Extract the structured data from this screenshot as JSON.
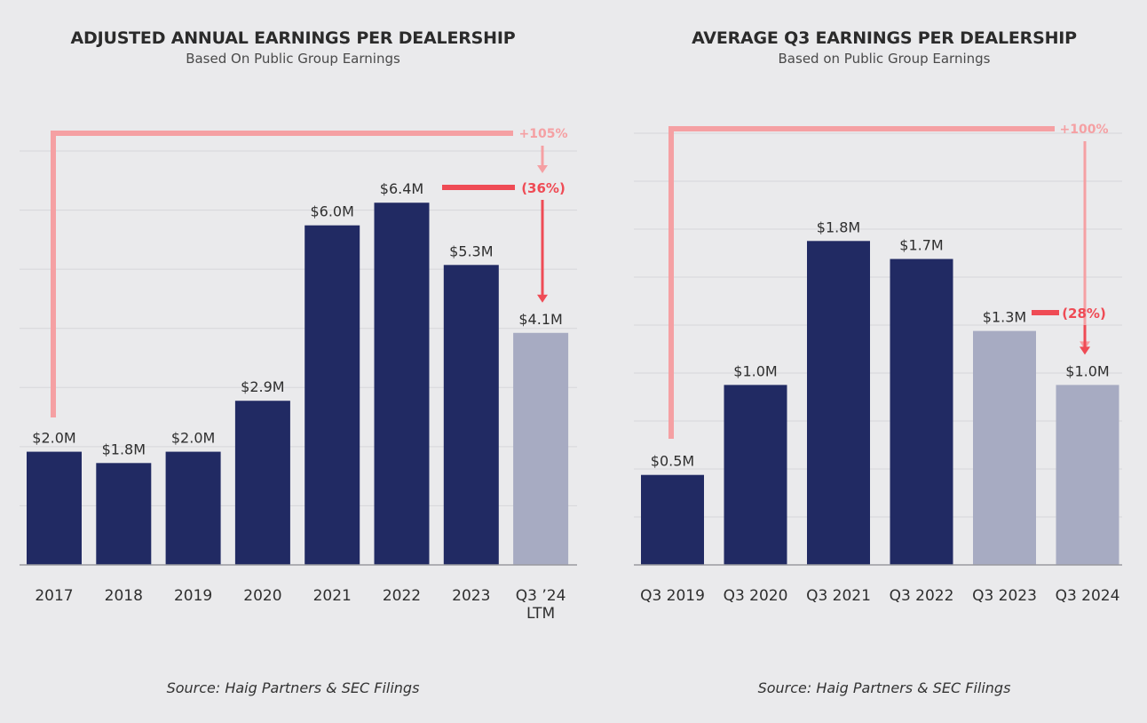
{
  "colors": {
    "background": "#eaeaec",
    "bar_dark": "#212a63",
    "bar_light": "#a7abc2",
    "bracket": "#f5a0a3",
    "decline": "#ef4b55",
    "gridline": "#d6d6da",
    "axis": "#9a9aa0",
    "text": "#2f2f2f"
  },
  "chart_data": [
    {
      "type": "bar",
      "title": "ADJUSTED ANNUAL EARNINGS PER DEALERSHIP",
      "subtitle": "Based On Public Group Earnings",
      "source": "Source: Haig Partners & SEC Filings",
      "categories": [
        "2017",
        "2018",
        "2019",
        "2020",
        "2021",
        "2022",
        "2023",
        "Q3 ’24|LTM"
      ],
      "values": [
        2.0,
        1.8,
        2.0,
        2.9,
        6.0,
        6.4,
        5.3,
        4.1
      ],
      "value_labels": [
        "$2.0M",
        "$1.8M",
        "$2.0M",
        "$2.9M",
        "$6.0M",
        "$6.4M",
        "$5.3M",
        "$4.1M"
      ],
      "bar_shade": [
        "dark",
        "dark",
        "dark",
        "dark",
        "dark",
        "dark",
        "dark",
        "light"
      ],
      "ylim": [
        0,
        7
      ],
      "grid": true,
      "annotations": {
        "increase": {
          "label": "+105%",
          "from_index": 0,
          "to_index": 7
        },
        "decrease": {
          "label": "(36%)",
          "from_index": 5,
          "to_index": 7
        }
      }
    },
    {
      "type": "bar",
      "title": "AVERAGE Q3 EARNINGS PER DEALERSHIP",
      "subtitle": "Based on Public Group Earnings",
      "source": "Source: Haig Partners & SEC Filings",
      "categories": [
        "Q3 2019",
        "Q3 2020",
        "Q3 2021",
        "Q3 2022",
        "Q3 2023",
        "Q3 2024"
      ],
      "values": [
        0.5,
        1.0,
        1.8,
        1.7,
        1.3,
        1.0
      ],
      "value_labels": [
        "$0.5M",
        "$1.0M",
        "$1.8M",
        "$1.7M",
        "$1.3M",
        "$1.0M"
      ],
      "bar_shade": [
        "dark",
        "dark",
        "dark",
        "dark",
        "light",
        "light"
      ],
      "ylim": [
        0,
        2.3
      ],
      "grid": true,
      "annotations": {
        "increase": {
          "label": "+100%",
          "from_index": 0,
          "to_index": 5
        },
        "decrease": {
          "label": "(28%)",
          "from_index": 4,
          "to_index": 5
        }
      }
    }
  ]
}
